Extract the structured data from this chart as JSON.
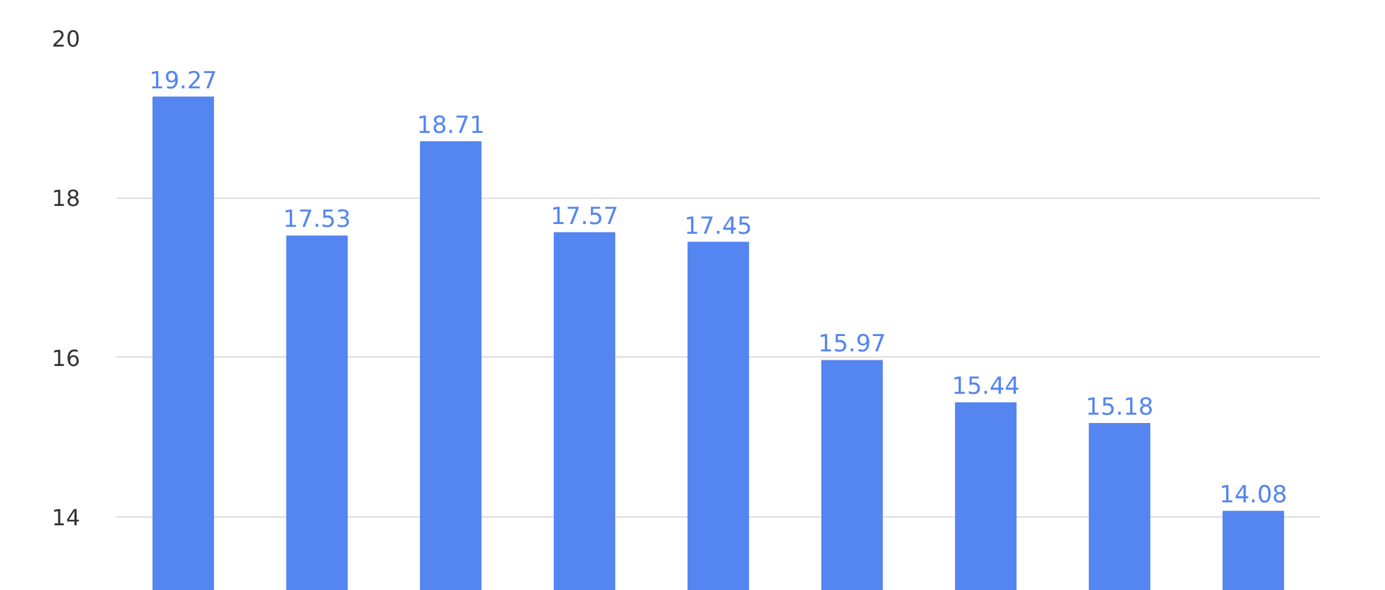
{
  "chart_data": {
    "type": "bar",
    "categories": [
      null,
      null,
      null,
      null,
      null,
      null,
      null,
      null,
      null
    ],
    "values": [
      19.27,
      17.53,
      18.71,
      17.57,
      17.45,
      15.97,
      15.44,
      15.18,
      14.08
    ],
    "color": "#5585f0",
    "ylim": [
      13.08,
      20
    ],
    "yticks": [
      14,
      16,
      18,
      20
    ],
    "grid": "y",
    "data_labels": true
  }
}
